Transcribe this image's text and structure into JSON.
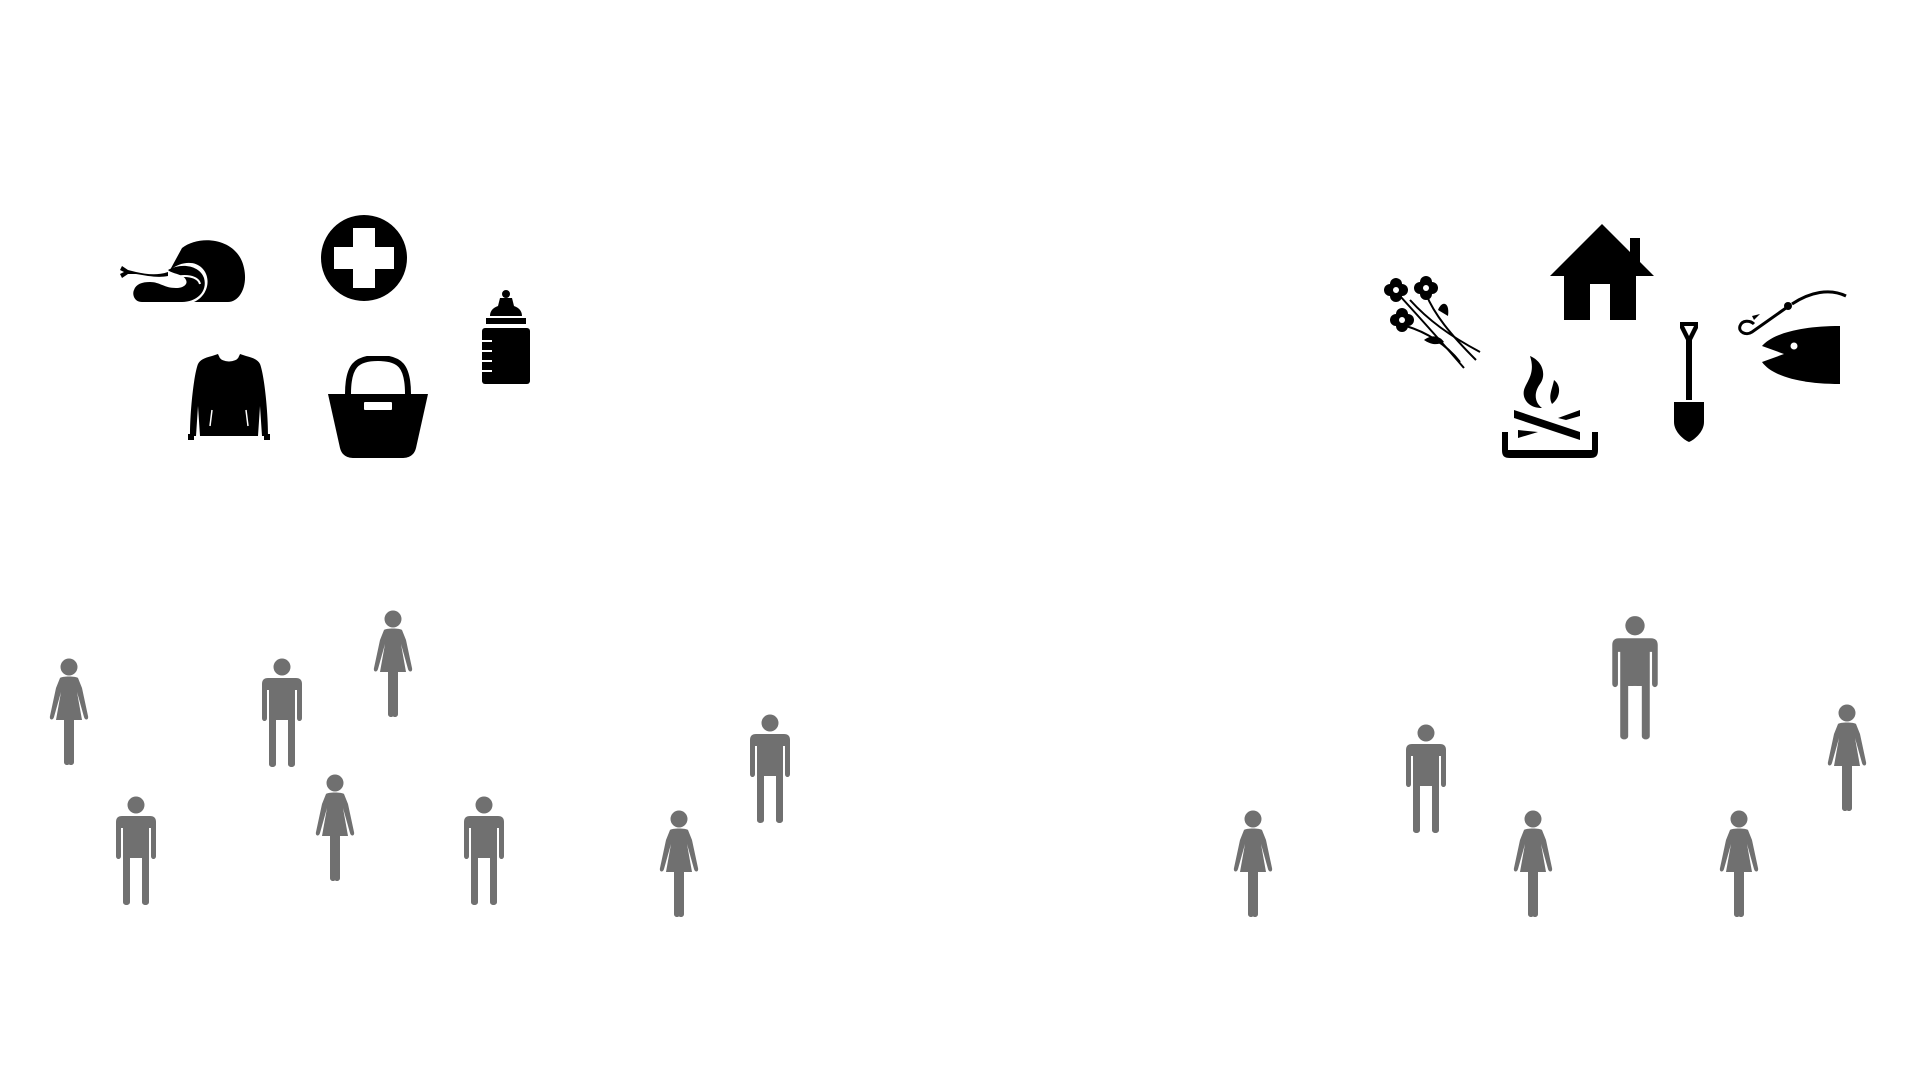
{
  "colors": {
    "background": "#ffffff",
    "icon": "#000000",
    "person": "#707070"
  },
  "left_group": {
    "needs_icons": [
      "chicken-leg-icon",
      "medical-cross-icon",
      "baby-bottle-icon",
      "sweater-icon",
      "shopping-bag-icon"
    ],
    "people": [
      "female",
      "male",
      "female",
      "male",
      "female",
      "male",
      "female",
      "male"
    ]
  },
  "right_group": {
    "resource_icons": [
      "flowers-icon",
      "house-icon",
      "campfire-icon",
      "shovel-icon",
      "fishing-hook-icon",
      "fish-icon"
    ],
    "people": [
      "male",
      "female",
      "male",
      "female",
      "female",
      "female"
    ]
  }
}
